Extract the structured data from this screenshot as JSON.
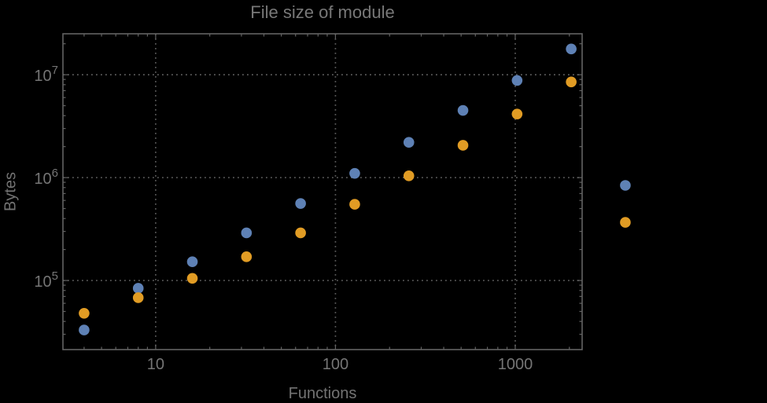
{
  "chart_data": {
    "type": "scatter",
    "title": "File size of module",
    "xlabel": "Functions",
    "ylabel": "Bytes",
    "x_scale": "log",
    "y_scale": "log",
    "grid": "dotted-major-only",
    "legend": "none",
    "xlim": [
      3.05,
      2355
    ],
    "ylim": [
      21300,
      25000000
    ],
    "x": [
      4,
      8,
      16,
      32,
      64,
      128,
      256,
      512,
      1024,
      2048,
      4096
    ],
    "series": [
      {
        "name": "blue",
        "color": "#5E81B5",
        "values": [
          33000,
          84000,
          152000,
          290000,
          560000,
          1100000,
          2200000,
          4500000,
          8800000,
          17800000,
          840000
        ]
      },
      {
        "name": "orange",
        "color": "#E19C24",
        "values": [
          48000,
          68000,
          105000,
          170000,
          290000,
          550000,
          1040000,
          2060000,
          4150000,
          8500000,
          367000
        ]
      }
    ],
    "x_ticks": [
      {
        "value": 10,
        "label": "10"
      },
      {
        "value": 100,
        "label": "100"
      },
      {
        "value": 1000,
        "label": "1000"
      }
    ],
    "y_ticks": [
      {
        "value": 100000,
        "label": "10^5",
        "base": "10",
        "exp": "5"
      },
      {
        "value": 1000000,
        "label": "10^6",
        "base": "10",
        "exp": "6"
      },
      {
        "value": 10000000,
        "label": "10^7",
        "base": "10",
        "exp": "7"
      }
    ],
    "marker_diameter": 13.6,
    "colors": {
      "background": "#000000",
      "frame": "#636363",
      "grid": "#5a5a5a",
      "tick": "#636363",
      "text": "#757575",
      "title": "#787878"
    }
  }
}
